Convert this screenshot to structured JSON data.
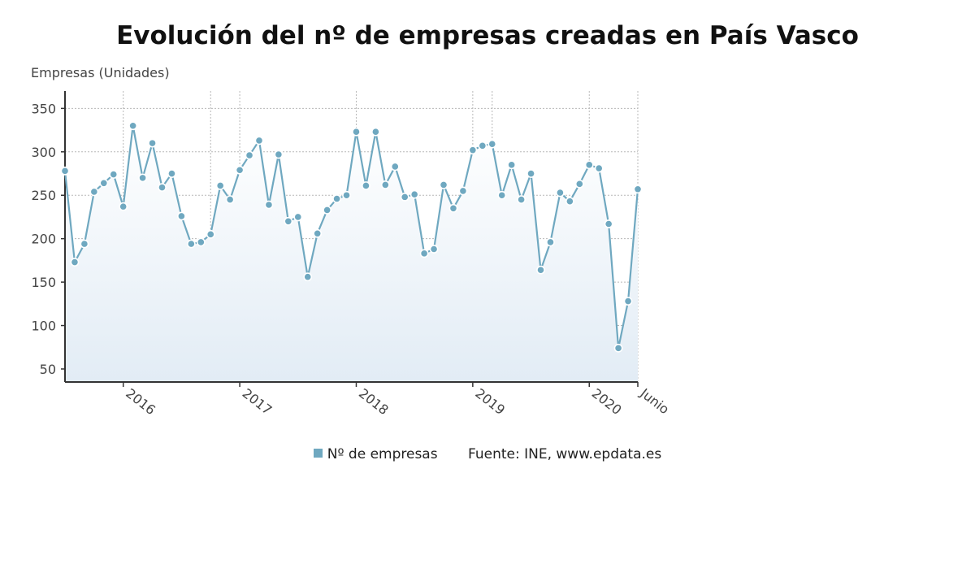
{
  "chart_data": {
    "type": "area",
    "title": "Evolución del nº de empresas creadas en País Vasco",
    "ylabel": "Empresas (Unidades)",
    "xlabel": "",
    "ylim": [
      35,
      370
    ],
    "yticks": [
      50,
      100,
      150,
      200,
      250,
      300,
      350
    ],
    "x_tick_labels": [
      {
        "label": "2016",
        "date": "2016-01"
      },
      {
        "label": "2017",
        "date": "2017-01"
      },
      {
        "label": "2018",
        "date": "2018-01"
      },
      {
        "label": "2019",
        "date": "2019-01"
      },
      {
        "label": "2020",
        "date": "2020-01"
      },
      {
        "label": "Junio",
        "date": "2020-06"
      }
    ],
    "vertical_markers": [
      "2016-10",
      "2019-03",
      "2020-06"
    ],
    "x": [
      "2015-07",
      "2015-08",
      "2015-09",
      "2015-10",
      "2015-11",
      "2015-12",
      "2016-01",
      "2016-02",
      "2016-03",
      "2016-04",
      "2016-05",
      "2016-06",
      "2016-07",
      "2016-08",
      "2016-09",
      "2016-10",
      "2016-11",
      "2016-12",
      "2017-01",
      "2017-02",
      "2017-03",
      "2017-04",
      "2017-05",
      "2017-06",
      "2017-07",
      "2017-08",
      "2017-09",
      "2017-10",
      "2017-11",
      "2017-12",
      "2018-01",
      "2018-02",
      "2018-03",
      "2018-04",
      "2018-05",
      "2018-06",
      "2018-07",
      "2018-08",
      "2018-09",
      "2018-10",
      "2018-11",
      "2018-12",
      "2019-01",
      "2019-02",
      "2019-03",
      "2019-04",
      "2019-05",
      "2019-06",
      "2019-07",
      "2019-08",
      "2019-09",
      "2019-10",
      "2019-11",
      "2019-12",
      "2020-01",
      "2020-02",
      "2020-03",
      "2020-04",
      "2020-05",
      "2020-06"
    ],
    "series": [
      {
        "name": "Nº de empresas",
        "color": "#6fa8c0",
        "values": [
          278,
          173,
          194,
          254,
          264,
          274,
          237,
          330,
          270,
          310,
          259,
          275,
          226,
          194,
          196,
          205,
          261,
          245,
          279,
          296,
          313,
          239,
          297,
          220,
          225,
          156,
          206,
          233,
          246,
          250,
          323,
          261,
          323,
          262,
          283,
          248,
          251,
          183,
          188,
          262,
          235,
          255,
          302,
          307,
          309,
          250,
          285,
          245,
          275,
          164,
          196,
          253,
          243,
          263,
          285,
          281,
          217,
          74,
          128,
          257
        ]
      }
    ],
    "legend_position": "bottom",
    "grid": true,
    "source": "Fuente: INE, www.epdata.es"
  }
}
